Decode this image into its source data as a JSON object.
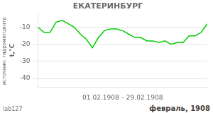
{
  "chart_data": {
    "type": "line",
    "title": "ЕКАТЕРИНБУРГ",
    "ylabel": "t,°C",
    "xlabel": "01.02.1908 – 29.02.1908",
    "annotations": [
      "источник: гидрометцентр",
      "lab127",
      "февраль, 1908"
    ],
    "x": [
      1,
      2,
      3,
      4,
      5,
      6,
      7,
      8,
      9,
      10,
      11,
      12,
      13,
      14,
      15,
      16,
      17,
      18,
      19,
      20,
      21,
      22,
      23,
      24,
      25,
      26,
      27,
      28,
      29
    ],
    "values": [
      -10,
      -13,
      -13,
      -7,
      -6,
      -8,
      -10,
      -14,
      -17,
      -22,
      -16,
      -12,
      -11,
      -11,
      -12,
      -14,
      -16,
      -16,
      -18,
      -18,
      -19,
      -18,
      -20,
      -19,
      -19,
      -15,
      -15,
      -13,
      -8
    ],
    "color": "#00cc00",
    "xlim": [
      1,
      29
    ],
    "ylim": [
      -45,
      -2
    ],
    "yticks": [
      -10,
      -20,
      -30,
      -40
    ],
    "grid": true,
    "tick_labels": "y"
  }
}
